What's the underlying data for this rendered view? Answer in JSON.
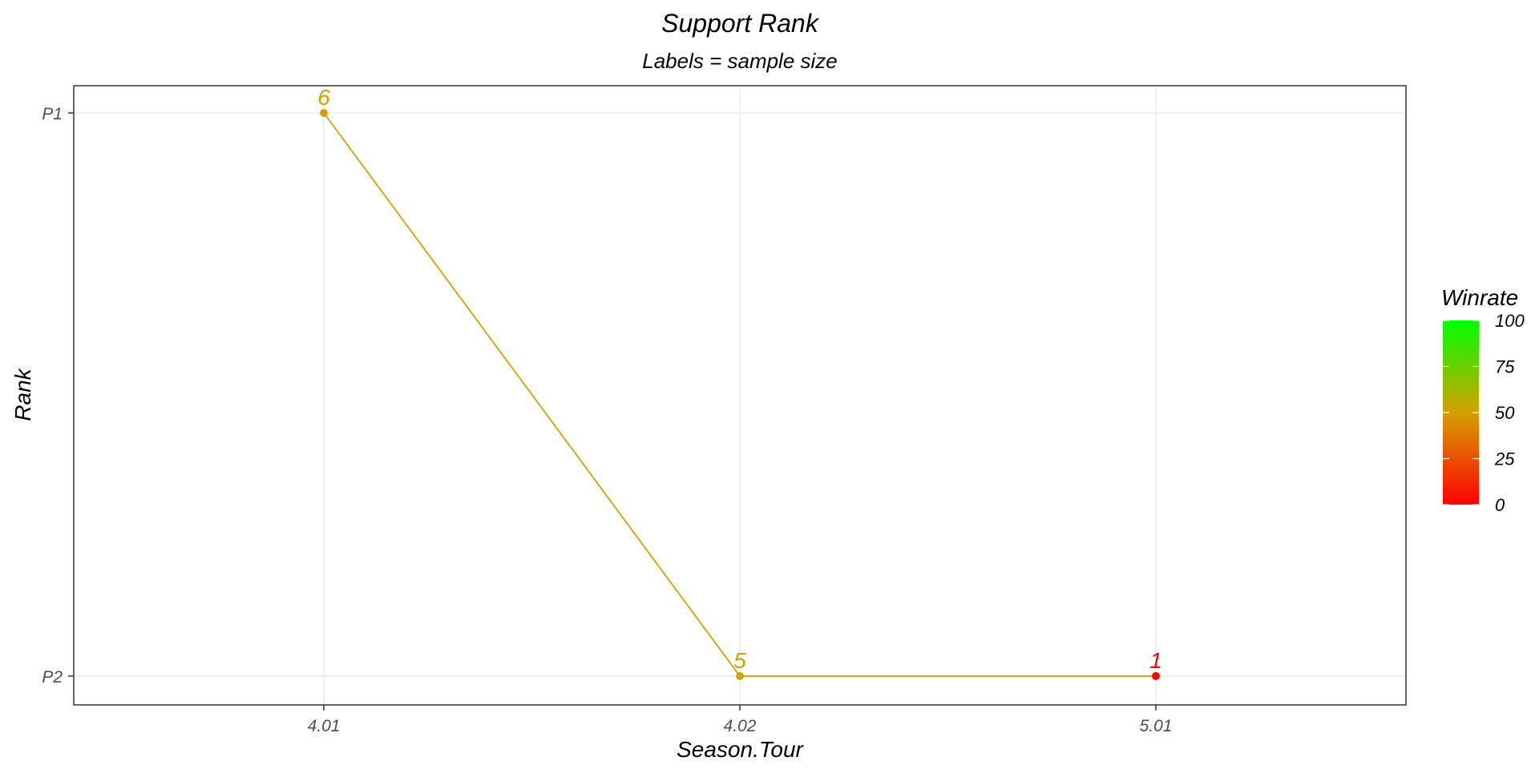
{
  "chart_data": {
    "type": "line",
    "title": "Support Rank",
    "subtitle": "Labels = sample size",
    "xlabel": "Season.Tour",
    "ylabel": "Rank",
    "x_categories": [
      "4.01",
      "4.02",
      "5.01"
    ],
    "y_categories": [
      "P1",
      "P2"
    ],
    "points": [
      {
        "x": "4.01",
        "y": "P1",
        "label": "6",
        "winrate": 50
      },
      {
        "x": "4.02",
        "y": "P2",
        "label": "5",
        "winrate": 50
      },
      {
        "x": "5.01",
        "y": "P2",
        "label": "1",
        "winrate": 0
      }
    ],
    "grid": true,
    "legend": {
      "title": "Winrate",
      "position": "right",
      "range": [
        0,
        100
      ],
      "ticks": [
        "0",
        "25",
        "50",
        "75",
        "100"
      ],
      "low_color": "#ff0000",
      "high_color": "#00ff00"
    }
  }
}
